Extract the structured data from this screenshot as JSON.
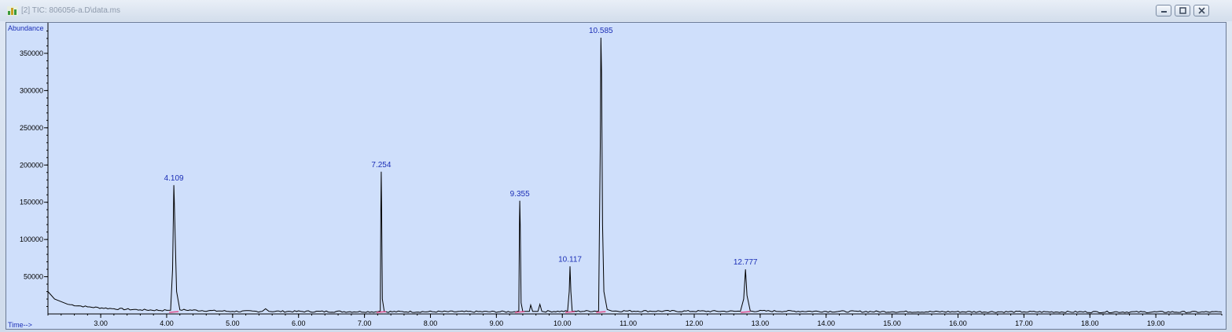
{
  "window": {
    "title": "[2] TIC: 806056-a.D\\data.ms",
    "icon": "chromatogram-app-icon",
    "controls": [
      "minimize-icon",
      "restore-icon",
      "close-icon"
    ]
  },
  "chart_data": {
    "type": "line",
    "title": "",
    "ylabel": "Abundance",
    "xlabel": "Time-->",
    "xlim": [
      2.2,
      20.0
    ],
    "ylim": [
      0,
      390000
    ],
    "x_ticks": [
      3.0,
      4.0,
      5.0,
      6.0,
      7.0,
      8.0,
      9.0,
      10.0,
      11.0,
      12.0,
      13.0,
      14.0,
      15.0,
      16.0,
      17.0,
      18.0,
      19.0
    ],
    "x_tick_labels": [
      "3.00",
      "4.00",
      "5.00",
      "6.00",
      "7.00",
      "8.00",
      "9.00",
      "10.00",
      "11.00",
      "12.00",
      "13.00",
      "14.00",
      "15.00",
      "16.00",
      "17.00",
      "18.00",
      "19.00"
    ],
    "y_ticks": [
      50000,
      100000,
      150000,
      200000,
      250000,
      300000,
      350000
    ],
    "y_tick_labels": [
      "50000",
      "100000",
      "150000",
      "200000",
      "250000",
      "300000",
      "350000"
    ],
    "grid": false,
    "series": [
      {
        "baseline_start": 30000,
        "baseline_end": 4000,
        "points": [
          [
            2.2,
            30000
          ],
          [
            2.3,
            20000
          ],
          [
            2.5,
            13000
          ],
          [
            2.8,
            9500
          ],
          [
            3.2,
            7000
          ],
          [
            3.6,
            5500
          ],
          [
            4.0,
            4800
          ],
          [
            4.06,
            5000
          ],
          [
            4.09,
            60000
          ],
          [
            4.105,
            150000
          ],
          [
            4.109,
            173000
          ],
          [
            4.115,
            155000
          ],
          [
            4.13,
            100000
          ],
          [
            4.15,
            30000
          ],
          [
            4.2,
            5500
          ],
          [
            5.0,
            3500
          ],
          [
            5.45,
            3500
          ],
          [
            5.5,
            7000
          ],
          [
            5.55,
            3500
          ],
          [
            7.2,
            3000
          ],
          [
            7.24,
            4000
          ],
          [
            7.248,
            140000
          ],
          [
            7.254,
            191000
          ],
          [
            7.26,
            140000
          ],
          [
            7.27,
            20000
          ],
          [
            7.3,
            3000
          ],
          [
            9.3,
            3000
          ],
          [
            9.34,
            4000
          ],
          [
            9.35,
            120000
          ],
          [
            9.355,
            152000
          ],
          [
            9.362,
            120000
          ],
          [
            9.375,
            15000
          ],
          [
            9.4,
            3500
          ],
          [
            9.5,
            3500
          ],
          [
            9.52,
            12000
          ],
          [
            9.55,
            3500
          ],
          [
            9.63,
            3500
          ],
          [
            9.66,
            13000
          ],
          [
            9.69,
            3500
          ],
          [
            10.08,
            3500
          ],
          [
            10.105,
            30000
          ],
          [
            10.117,
            64000
          ],
          [
            10.13,
            30000
          ],
          [
            10.15,
            3500
          ],
          [
            10.55,
            4000
          ],
          [
            10.575,
            225000
          ],
          [
            10.585,
            371000
          ],
          [
            10.595,
            325000
          ],
          [
            10.61,
            120000
          ],
          [
            10.63,
            30000
          ],
          [
            10.68,
            6000
          ],
          [
            10.75,
            4000
          ],
          [
            12.7,
            3500
          ],
          [
            12.75,
            20000
          ],
          [
            12.777,
            60000
          ],
          [
            12.8,
            25000
          ],
          [
            12.85,
            4000
          ],
          [
            15.0,
            3000
          ],
          [
            17.0,
            2800
          ],
          [
            20.0,
            2500
          ]
        ]
      }
    ],
    "peak_labels": [
      {
        "x": 4.109,
        "y": 173000,
        "label": "4.109"
      },
      {
        "x": 7.254,
        "y": 191000,
        "label": "7.254"
      },
      {
        "x": 9.355,
        "y": 152000,
        "label": "9.355"
      },
      {
        "x": 10.117,
        "y": 64000,
        "label": "10.117"
      },
      {
        "x": 10.585,
        "y": 371000,
        "label": "10.585"
      },
      {
        "x": 12.777,
        "y": 60000,
        "label": "12.777"
      }
    ],
    "colors": {
      "trace": "#000000",
      "peak_label": "#1c2fb6",
      "axis_label": "#1c2fb6",
      "integration_marks": "#e0508c",
      "background": "#cfdffb"
    }
  }
}
